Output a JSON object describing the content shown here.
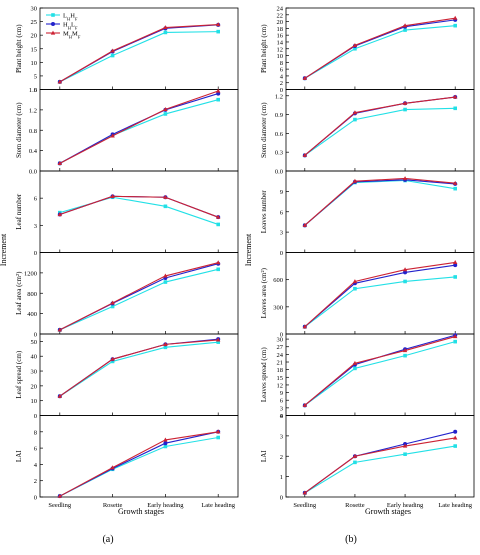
{
  "colors": {
    "cyan": "#22e0e6",
    "blue": "#2222cc",
    "red": "#cc2233"
  },
  "chart_data": [
    {
      "type": "line",
      "panel": "a",
      "panel_label": "(a)",
      "xlabel": "Growth stages",
      "shared_ylabel": "Increment",
      "categories": [
        "Seedling",
        "Rosette",
        "Early heading",
        "Late heading"
      ],
      "legend": [
        {
          "name": "L",
          "sub": "H",
          "mid": "H",
          "sub2": "F",
          "color": "cyan"
        },
        {
          "name": "H",
          "sub": "H",
          "mid": "L",
          "sub2": "F",
          "color": "blue"
        },
        {
          "name": "M",
          "sub": "H",
          "mid": "M",
          "sub2": "F",
          "color": "red"
        }
      ],
      "subplots": [
        {
          "ylabel": "Plant height (cm)",
          "ylim": [
            0,
            30
          ],
          "ticks": [
            "0",
            "5",
            "10",
            "15",
            "20",
            "25",
            "30"
          ],
          "series": [
            {
              "values": [
                2.8,
                12.5,
                21.0,
                21.3
              ]
            },
            {
              "values": [
                2.8,
                14.0,
                22.5,
                23.8
              ]
            },
            {
              "values": [
                2.8,
                14.2,
                22.8,
                23.9
              ]
            }
          ]
        },
        {
          "ylabel": "Stem diameter (cm)",
          "ylim": [
            0,
            1.6
          ],
          "ticks": [
            "0.0",
            "0.4",
            "0.8",
            "1.2",
            "1.6"
          ],
          "series": [
            {
              "values": [
                0.15,
                0.7,
                1.12,
                1.4
              ]
            },
            {
              "values": [
                0.15,
                0.72,
                1.2,
                1.52
              ]
            },
            {
              "values": [
                0.15,
                0.69,
                1.21,
                1.57
              ]
            }
          ]
        },
        {
          "ylabel": "Leaf number",
          "ylim": [
            0,
            9
          ],
          "ticks": [
            "0",
            "3",
            "6"
          ],
          "series": [
            {
              "values": [
                4.4,
                6.1,
                5.1,
                3.1
              ]
            },
            {
              "values": [
                4.2,
                6.2,
                6.1,
                3.9
              ]
            },
            {
              "values": [
                4.2,
                6.2,
                6.1,
                3.9
              ]
            }
          ]
        },
        {
          "ylabel": "Leaf area (cm²)",
          "ylim": [
            0,
            1600
          ],
          "ticks": [
            "0",
            "400",
            "800",
            "1200"
          ],
          "series": [
            {
              "values": [
                80,
                540,
                1020,
                1270
              ]
            },
            {
              "values": [
                80,
                600,
                1100,
                1380
              ]
            },
            {
              "values": [
                80,
                610,
                1140,
                1400
              ]
            }
          ]
        },
        {
          "ylabel": "Leaf spread (cm)",
          "ylim": [
            0,
            55
          ],
          "ticks": [
            "0",
            "10",
            "20",
            "30",
            "40",
            "50"
          ],
          "series": [
            {
              "values": [
                13.0,
                36.5,
                46.0,
                49.5
              ]
            },
            {
              "values": [
                13.0,
                38.0,
                48.0,
                51.5
              ]
            },
            {
              "values": [
                13.0,
                38.0,
                48.0,
                51.0
              ]
            }
          ]
        },
        {
          "ylabel": "LAI",
          "ylim": [
            0,
            10
          ],
          "ticks": [
            "0",
            "2",
            "4",
            "6",
            "8"
          ],
          "series": [
            {
              "values": [
                0.1,
                3.4,
                6.2,
                7.3
              ]
            },
            {
              "values": [
                0.1,
                3.5,
                6.6,
                8.0
              ]
            },
            {
              "values": [
                0.1,
                3.6,
                7.0,
                8.0
              ]
            }
          ]
        }
      ]
    },
    {
      "type": "line",
      "panel": "b",
      "panel_label": "(b)",
      "xlabel": "Growth stages",
      "shared_ylabel": "Increment",
      "categories": [
        "Seedling",
        "Rosette",
        "Early heading",
        "Late heading"
      ],
      "subplots": [
        {
          "ylabel": "Plant height (cm)",
          "ylim": [
            0,
            24
          ],
          "ticks": [
            "0",
            "2",
            "4",
            "6",
            "8",
            "10",
            "12",
            "14",
            "16",
            "18",
            "20",
            "22",
            "24"
          ],
          "series": [
            {
              "values": [
                3.3,
                12.0,
                17.5,
                18.8
              ]
            },
            {
              "values": [
                3.3,
                12.8,
                18.5,
                20.5
              ]
            },
            {
              "values": [
                3.3,
                13.0,
                18.8,
                21.0
              ]
            }
          ]
        },
        {
          "ylabel": "Stem diameter (cm)",
          "ylim": [
            0,
            1.3
          ],
          "ticks": [
            "0.0",
            "0.3",
            "0.6",
            "0.9",
            "1.2"
          ],
          "series": [
            {
              "values": [
                0.25,
                0.82,
                0.98,
                1.0
              ]
            },
            {
              "values": [
                0.25,
                0.92,
                1.08,
                1.18
              ]
            },
            {
              "values": [
                0.25,
                0.93,
                1.08,
                1.18
              ]
            }
          ]
        },
        {
          "ylabel": "Leaves number",
          "ylim": [
            0,
            12
          ],
          "ticks": [
            "0",
            "3",
            "6",
            "9"
          ],
          "series": [
            {
              "values": [
                4.0,
                10.3,
                10.6,
                9.4
              ]
            },
            {
              "values": [
                4.0,
                10.4,
                10.7,
                10.1
              ]
            },
            {
              "values": [
                4.0,
                10.5,
                10.9,
                10.2
              ]
            }
          ]
        },
        {
          "ylabel": "Leaves area (cm²)",
          "ylim": [
            0,
            900
          ],
          "ticks": [
            "0",
            "300",
            "600"
          ],
          "series": [
            {
              "values": [
                80,
                500,
                580,
                630
              ]
            },
            {
              "values": [
                80,
                560,
                680,
                760
              ]
            },
            {
              "values": [
                80,
                580,
                710,
                790
              ]
            }
          ]
        },
        {
          "ylabel": "Leaves spread (cm)",
          "ylim": [
            0,
            32
          ],
          "ticks": [
            "0",
            "3",
            "6",
            "9",
            "12",
            "15",
            "18",
            "21",
            "24",
            "27",
            "30"
          ],
          "series": [
            {
              "values": [
                4.0,
                18.5,
                23.5,
                29.0
              ]
            },
            {
              "values": [
                4.0,
                20.0,
                26.0,
                31.5
              ]
            },
            {
              "values": [
                4.0,
                20.5,
                25.5,
                31.0
              ]
            }
          ]
        },
        {
          "ylabel": "LAI",
          "ylim": [
            0,
            4
          ],
          "ticks": [
            "0",
            "1",
            "2",
            "3",
            "4"
          ],
          "series": [
            {
              "values": [
                0.2,
                1.7,
                2.1,
                2.5
              ]
            },
            {
              "values": [
                0.2,
                2.0,
                2.6,
                3.2
              ]
            },
            {
              "values": [
                0.2,
                2.0,
                2.5,
                2.9
              ]
            }
          ]
        }
      ]
    }
  ]
}
